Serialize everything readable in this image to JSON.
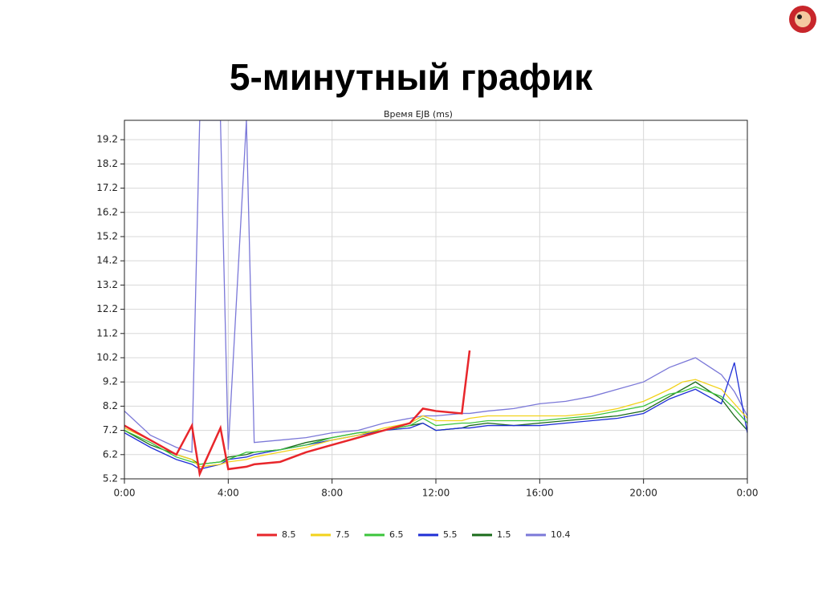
{
  "title": "5-минутный график",
  "chart_data": {
    "type": "line",
    "title": "Время EJB (ms)",
    "x": [
      0,
      1,
      2,
      2.6,
      2.9,
      3.7,
      4,
      4.7,
      5,
      6,
      7,
      8,
      9,
      10,
      11,
      11.5,
      12,
      13,
      13.3,
      14,
      15,
      16,
      17,
      18,
      19,
      20,
      21,
      21.5,
      22,
      23,
      23.5,
      24
    ],
    "xlim": [
      0,
      24
    ],
    "xticks": [
      {
        "value": 0,
        "label": "0:00"
      },
      {
        "value": 4,
        "label": "4:00"
      },
      {
        "value": 8,
        "label": "8:00"
      },
      {
        "value": 12,
        "label": "12:00"
      },
      {
        "value": 16,
        "label": "16:00"
      },
      {
        "value": 20,
        "label": "20:00"
      },
      {
        "value": 24,
        "label": "0:00"
      }
    ],
    "ylim": [
      5.2,
      20
    ],
    "yticks": [
      5.2,
      6.2,
      7.2,
      8.2,
      9.2,
      10.2,
      11.2,
      12.2,
      13.2,
      14.2,
      15.2,
      16.2,
      17.2,
      18.2,
      19.2
    ],
    "grid": true,
    "legend": "bottom",
    "series": [
      {
        "name": "8.5",
        "color": "#e8262b",
        "values": [
          7.4,
          6.8,
          6.2,
          7.4,
          5.4,
          7.3,
          5.6,
          5.7,
          5.8,
          5.9,
          6.3,
          6.6,
          6.9,
          7.2,
          7.5,
          8.1,
          8.0,
          7.9,
          10.5,
          null,
          null,
          null,
          null,
          null,
          null,
          null,
          null,
          null,
          null,
          null,
          null,
          null
        ]
      },
      {
        "name": "7.5",
        "color": "#f2d21b",
        "values": [
          7.3,
          6.8,
          6.2,
          6.0,
          5.7,
          5.8,
          5.9,
          6.0,
          6.1,
          6.3,
          6.5,
          6.8,
          7.0,
          7.3,
          7.5,
          7.8,
          7.6,
          7.6,
          7.7,
          7.8,
          7.8,
          7.8,
          7.8,
          7.9,
          8.1,
          8.4,
          8.9,
          9.2,
          9.3,
          8.9,
          8.3,
          7.7
        ]
      },
      {
        "name": "6.5",
        "color": "#3cc43c",
        "values": [
          7.2,
          6.7,
          6.1,
          5.9,
          5.8,
          5.9,
          6.0,
          6.3,
          6.3,
          6.4,
          6.6,
          6.9,
          7.1,
          7.2,
          7.4,
          7.7,
          7.4,
          7.5,
          7.5,
          7.6,
          7.6,
          7.6,
          7.7,
          7.8,
          8.0,
          8.2,
          8.7,
          8.8,
          9.0,
          8.6,
          8.1,
          7.5
        ]
      },
      {
        "name": "5.5",
        "color": "#1f2fd6",
        "values": [
          7.1,
          6.5,
          6.0,
          5.8,
          5.6,
          5.8,
          6.0,
          6.1,
          6.2,
          6.4,
          6.6,
          6.8,
          7.0,
          7.2,
          7.3,
          7.5,
          7.2,
          7.3,
          7.3,
          7.4,
          7.4,
          7.4,
          7.5,
          7.6,
          7.7,
          7.9,
          8.5,
          8.7,
          8.9,
          8.3,
          10.0,
          7.1
        ]
      },
      {
        "name": "1.5",
        "color": "#1a6b1a",
        "values": [
          7.2,
          6.6,
          6.2,
          6.0,
          5.8,
          5.9,
          6.1,
          6.2,
          6.3,
          6.4,
          6.7,
          6.9,
          7.1,
          7.2,
          7.4,
          7.5,
          7.2,
          7.3,
          7.4,
          7.5,
          7.4,
          7.5,
          7.6,
          7.7,
          7.8,
          8.0,
          8.6,
          8.9,
          9.2,
          8.5,
          7.8,
          7.2
        ]
      },
      {
        "name": "10.4",
        "color": "#7b78d8",
        "values": [
          8.0,
          7.0,
          6.5,
          6.3,
          20,
          20,
          6.4,
          20,
          6.7,
          6.8,
          6.9,
          7.1,
          7.2,
          7.5,
          7.7,
          7.8,
          7.8,
          7.9,
          7.9,
          8.0,
          8.1,
          8.3,
          8.4,
          8.6,
          8.9,
          9.2,
          9.8,
          10.0,
          10.2,
          9.5,
          8.8,
          7.8
        ]
      }
    ]
  }
}
